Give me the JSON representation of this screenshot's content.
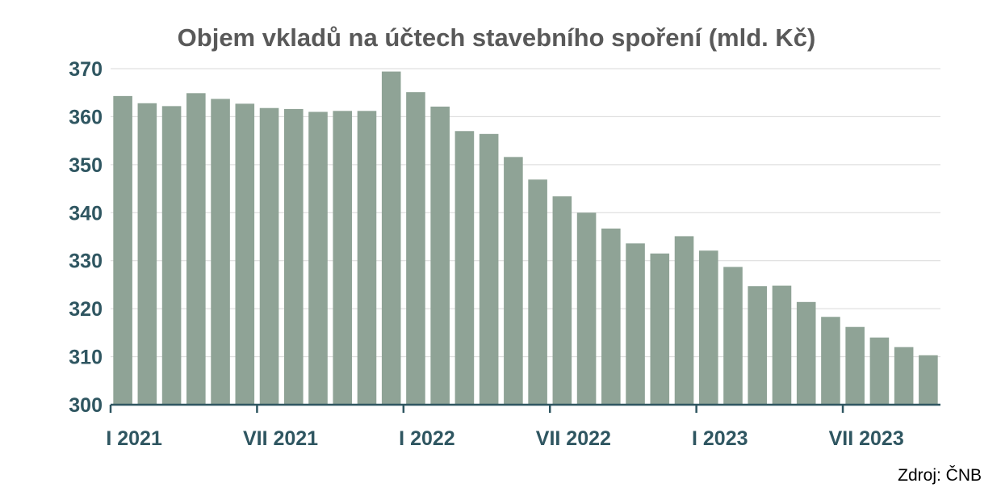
{
  "chart_data": {
    "type": "bar",
    "title": "Objem vkladů na účtech stavebního spoření (mld. Kč)",
    "xlabel": "",
    "ylabel": "",
    "ylim": [
      300,
      370
    ],
    "yticks": [
      300,
      310,
      320,
      330,
      340,
      350,
      360,
      370
    ],
    "grid": true,
    "legend": "none",
    "bar_color": "#8fa396",
    "axis_color": "#2f5661",
    "categories": [
      "I 2021",
      "II 2021",
      "III 2021",
      "IV 2021",
      "V 2021",
      "VI 2021",
      "VII 2021",
      "VIII 2021",
      "IX 2021",
      "X 2021",
      "XI 2021",
      "XII 2021",
      "I 2022",
      "II 2022",
      "III 2022",
      "IV 2022",
      "V 2022",
      "VI 2022",
      "VII 2022",
      "VIII 2022",
      "IX 2022",
      "X 2022",
      "XI 2022",
      "XII 2022",
      "I 2023",
      "II 2023",
      "III 2023",
      "IV 2023",
      "V 2023",
      "VI 2023",
      "VII 2023",
      "VIII 2023",
      "IX 2023",
      "X 2023"
    ],
    "x_tick_labels": [
      "I 2021",
      "VII 2021",
      "I 2022",
      "VII 2022",
      "I 2023",
      "VII 2023"
    ],
    "values": [
      364.3,
      362.8,
      362.2,
      364.9,
      363.7,
      362.7,
      361.8,
      361.6,
      361.0,
      361.2,
      361.2,
      369.4,
      365.1,
      362.1,
      357.0,
      356.4,
      351.6,
      346.9,
      343.4,
      340.0,
      336.7,
      333.6,
      331.5,
      335.1,
      332.1,
      328.7,
      324.7,
      324.8,
      321.4,
      318.3,
      316.2,
      314.0,
      312.0,
      310.3
    ],
    "source": "Zdroj: ČNB"
  }
}
